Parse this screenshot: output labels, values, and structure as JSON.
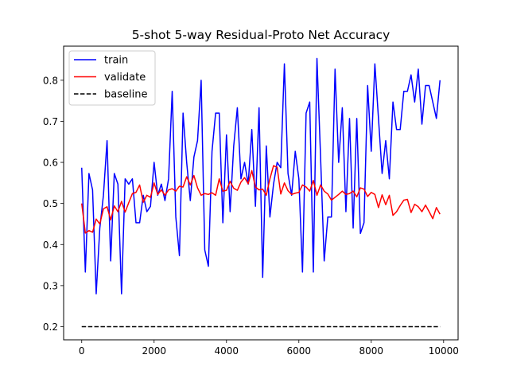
{
  "chart_data": {
    "type": "line",
    "title": "5-shot 5-way Residual-Proto Net Accuracy",
    "xlabel": "",
    "ylabel": "",
    "xlim": [
      -500,
      10400
    ],
    "ylim": [
      0.168,
      0.883
    ],
    "x_ticks": [
      0,
      2000,
      4000,
      6000,
      8000,
      10000
    ],
    "x_tick_labels": [
      "0",
      "2000",
      "4000",
      "6000",
      "8000",
      "10000"
    ],
    "y_ticks": [
      0.2,
      0.3,
      0.4,
      0.5,
      0.6,
      0.7,
      0.8
    ],
    "y_tick_labels": [
      "0.2",
      "0.3",
      "0.4",
      "0.5",
      "0.6",
      "0.7",
      "0.8"
    ],
    "grid": false,
    "legend_position": "upper left",
    "legend": [
      "train",
      "validate",
      "baseline"
    ],
    "series": [
      {
        "name": "train",
        "color": "#0000ff",
        "style": "solid",
        "x": [
          0,
          100,
          200,
          300,
          400,
          500,
          600,
          700,
          800,
          900,
          1000,
          1100,
          1200,
          1300,
          1400,
          1500,
          1600,
          1700,
          1800,
          1900,
          2000,
          2100,
          2200,
          2300,
          2400,
          2500,
          2600,
          2700,
          2800,
          2900,
          3000,
          3100,
          3200,
          3300,
          3400,
          3500,
          3600,
          3700,
          3800,
          3900,
          4000,
          4100,
          4200,
          4300,
          4400,
          4500,
          4600,
          4700,
          4800,
          4900,
          5000,
          5100,
          5200,
          5300,
          5400,
          5500,
          5600,
          5700,
          5800,
          5900,
          6000,
          6100,
          6200,
          6300,
          6400,
          6500,
          6600,
          6700,
          6800,
          6900,
          7000,
          7100,
          7200,
          7300,
          7400,
          7500,
          7600,
          7700,
          7800,
          7900,
          8000,
          8100,
          8200,
          8300,
          8400,
          8500,
          8600,
          8700,
          8800,
          8900,
          9000,
          9100,
          9200,
          9300,
          9400,
          9500,
          9600,
          9700,
          9800,
          9900
        ],
        "y": [
          0.587,
          0.333,
          0.573,
          0.533,
          0.28,
          0.44,
          0.52,
          0.653,
          0.36,
          0.573,
          0.547,
          0.28,
          0.56,
          0.547,
          0.56,
          0.453,
          0.453,
          0.52,
          0.48,
          0.493,
          0.6,
          0.52,
          0.547,
          0.507,
          0.56,
          0.773,
          0.467,
          0.373,
          0.72,
          0.6,
          0.507,
          0.613,
          0.653,
          0.8,
          0.387,
          0.347,
          0.627,
          0.72,
          0.72,
          0.453,
          0.667,
          0.48,
          0.64,
          0.733,
          0.56,
          0.6,
          0.547,
          0.68,
          0.493,
          0.733,
          0.32,
          0.64,
          0.467,
          0.547,
          0.6,
          0.587,
          0.84,
          0.573,
          0.52,
          0.627,
          0.56,
          0.333,
          0.72,
          0.747,
          0.333,
          0.853,
          0.613,
          0.36,
          0.467,
          0.467,
          0.827,
          0.6,
          0.733,
          0.48,
          0.707,
          0.44,
          0.707,
          0.427,
          0.453,
          0.787,
          0.627,
          0.84,
          0.707,
          0.573,
          0.653,
          0.56,
          0.747,
          0.68,
          0.68,
          0.773,
          0.773,
          0.813,
          0.747,
          0.827,
          0.693,
          0.787,
          0.787,
          0.747,
          0.707,
          0.8
        ]
      },
      {
        "name": "validate",
        "color": "#ff0000",
        "style": "solid",
        "x": [
          0,
          100,
          200,
          300,
          400,
          500,
          600,
          700,
          800,
          900,
          1000,
          1100,
          1200,
          1300,
          1400,
          1500,
          1600,
          1700,
          1800,
          1900,
          2000,
          2100,
          2200,
          2300,
          2400,
          2500,
          2600,
          2700,
          2800,
          2900,
          3000,
          3100,
          3200,
          3300,
          3400,
          3500,
          3600,
          3700,
          3800,
          3900,
          4000,
          4100,
          4200,
          4300,
          4400,
          4500,
          4600,
          4700,
          4800,
          4900,
          5000,
          5100,
          5200,
          5300,
          5400,
          5500,
          5600,
          5700,
          5800,
          5900,
          6000,
          6100,
          6200,
          6300,
          6400,
          6500,
          6600,
          6700,
          6800,
          6900,
          7000,
          7100,
          7200,
          7300,
          7400,
          7500,
          7600,
          7700,
          7800,
          7900,
          8000,
          8100,
          8200,
          8300,
          8400,
          8500,
          8600,
          8700,
          8800,
          8900,
          9000,
          9100,
          9200,
          9300,
          9400,
          9500,
          9600,
          9700,
          9800,
          9900
        ],
        "y": [
          0.5,
          0.428,
          0.434,
          0.43,
          0.462,
          0.45,
          0.487,
          0.492,
          0.46,
          0.494,
          0.48,
          0.505,
          0.479,
          0.502,
          0.524,
          0.527,
          0.545,
          0.503,
          0.52,
          0.515,
          0.55,
          0.522,
          0.533,
          0.52,
          0.533,
          0.536,
          0.53,
          0.542,
          0.54,
          0.565,
          0.545,
          0.568,
          0.538,
          0.52,
          0.524,
          0.522,
          0.526,
          0.52,
          0.56,
          0.53,
          0.532,
          0.554,
          0.537,
          0.532,
          0.552,
          0.563,
          0.548,
          0.58,
          0.54,
          0.533,
          0.535,
          0.52,
          0.56,
          0.592,
          0.588,
          0.523,
          0.55,
          0.531,
          0.522,
          0.525,
          0.527,
          0.545,
          0.54,
          0.53,
          0.556,
          0.52,
          0.545,
          0.53,
          0.523,
          0.508,
          0.515,
          0.522,
          0.53,
          0.522,
          0.524,
          0.53,
          0.516,
          0.538,
          0.535,
          0.517,
          0.527,
          0.522,
          0.49,
          0.521,
          0.497,
          0.52,
          0.471,
          0.48,
          0.495,
          0.508,
          0.51,
          0.478,
          0.498,
          0.492,
          0.48,
          0.496,
          0.48,
          0.463,
          0.49,
          0.474
        ]
      },
      {
        "name": "baseline",
        "color": "#000000",
        "style": "dashed",
        "x": [
          0,
          9900
        ],
        "y": [
          0.2,
          0.2
        ]
      }
    ]
  }
}
